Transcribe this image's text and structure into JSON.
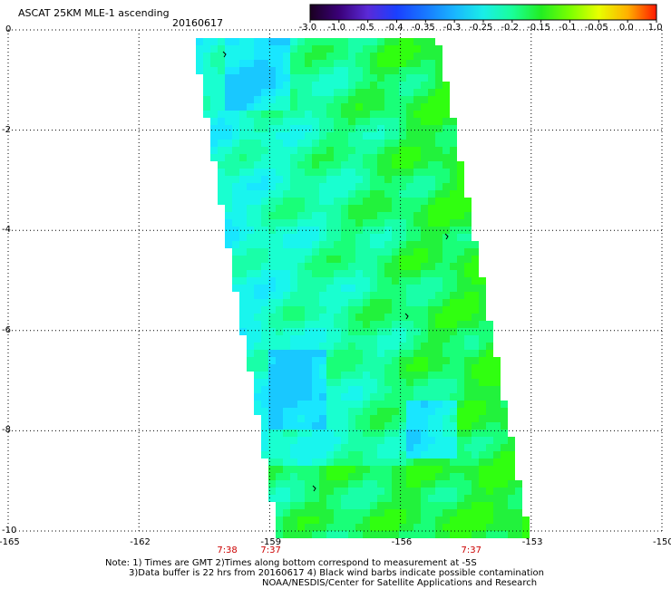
{
  "header": {
    "title": "ASCAT 25KM MLE-1 ascending",
    "date": "20160617"
  },
  "colorbar": {
    "labels": [
      "-3.0",
      "-1.0",
      "-0.5",
      "-0.4",
      "-0.35",
      "-0.3",
      "-0.25",
      "-0.2",
      "-0.15",
      "-0.1",
      "-0.05",
      "0.0",
      "1.0"
    ],
    "colors": [
      "#1a0020",
      "#3a0078",
      "#5a2ad8",
      "#1a40ff",
      "#1878ff",
      "#19b6ff",
      "#19eee8",
      "#19ff9a",
      "#22ee22",
      "#7aff00",
      "#e8ff00",
      "#ffb000",
      "#ff1800"
    ]
  },
  "map": {
    "lon_labels": [
      "-165",
      "-162",
      "-159",
      "-156",
      "-153",
      "-150"
    ],
    "lat_labels": [
      "0",
      "-2",
      "-4",
      "-6",
      "-8",
      "-10"
    ],
    "lon_range": [
      -165,
      -150
    ],
    "lat_range": [
      -10,
      0
    ],
    "grid_lons": [
      -162,
      -159,
      -156,
      -153
    ],
    "grid_lats": [
      -2,
      -4,
      -6,
      -8
    ],
    "time_labels": [
      "7:38",
      "7:37",
      "7:37"
    ],
    "time_label_lons": [
      -160,
      -159,
      -154.4
    ]
  },
  "notes": {
    "line1": "Note: 1) Times are GMT 2)Times along bottom correspond to measurement at -5S",
    "line2": "3)Data buffer is 22 hrs from 20160617 4) Black wind barbs indicate possible contamination",
    "line3": "NOAA/NESDIS/Center for Satellite Applications and Research"
  }
}
